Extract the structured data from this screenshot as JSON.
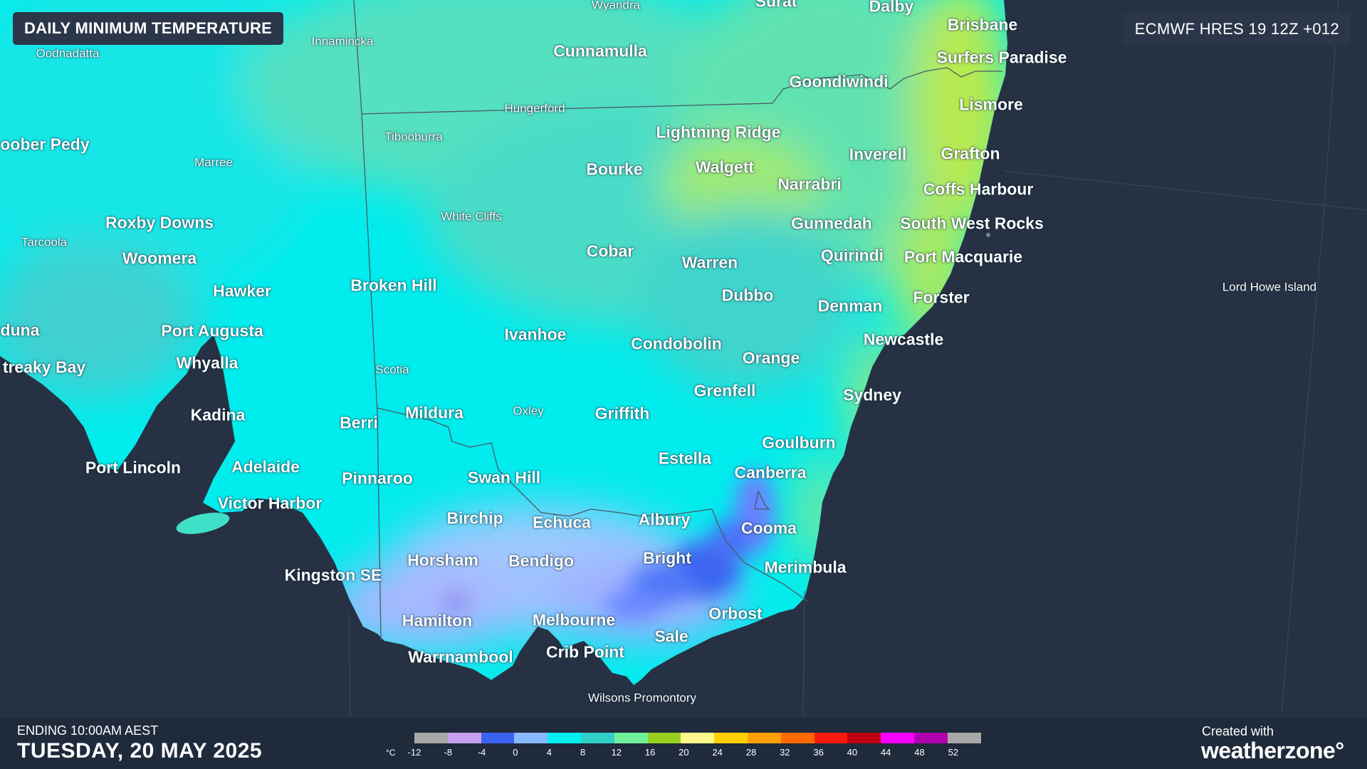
{
  "header": {
    "title": "DAILY MINIMUM TEMPERATURE",
    "model": "ECMWF HRES 19 12Z +012"
  },
  "footer": {
    "ending": "ENDING 10:00AM AEST",
    "date": "TUESDAY, 20 MAY 2025",
    "created_with": "Created with",
    "brand": "weatherzone°"
  },
  "legend": {
    "unit": "°C",
    "ticks": [
      "-12",
      "-8",
      "-4",
      "0",
      "4",
      "8",
      "12",
      "16",
      "20",
      "24",
      "28",
      "32",
      "36",
      "40",
      "44",
      "48",
      "52"
    ],
    "colors": [
      "#a8a8a8",
      "#c8a0f0",
      "#3b63f0",
      "#88b8ff",
      "#00f0f0",
      "#30d0c8",
      "#70f098",
      "#98d020",
      "#fff88a",
      "#ffd000",
      "#ffa000",
      "#ff6a00",
      "#ff1a10",
      "#c00010",
      "#ff00ff",
      "#b000b0",
      "#a8a8a8"
    ]
  },
  "colors": {
    "ocean": "#263244",
    "cyan": "#00f0f0",
    "teal": "#40d8d0",
    "green": "#70e8a0",
    "yellow_green": "#c8e830",
    "blue": "#3b63f0",
    "lavender": "#b0b8ff"
  },
  "places": [
    {
      "name": "Wyandra"
    },
    {
      "name": "Surat"
    },
    {
      "name": "Dalby"
    },
    {
      "name": "Brisbane"
    },
    {
      "name": "Innamincka"
    },
    {
      "name": "Oodnadatta"
    },
    {
      "name": "Cunnamulla"
    },
    {
      "name": "Surfers Paradise"
    },
    {
      "name": "Goondiwindi"
    },
    {
      "name": "Hungerford"
    },
    {
      "name": "Lismore"
    },
    {
      "name": "Tibooburra"
    },
    {
      "name": "Lightning Ridge"
    },
    {
      "name": "oober Pedy"
    },
    {
      "name": "Inverell"
    },
    {
      "name": "Grafton"
    },
    {
      "name": "Marree"
    },
    {
      "name": "Bourke"
    },
    {
      "name": "Walgett"
    },
    {
      "name": "Narrabri"
    },
    {
      "name": "Coffs Harbour"
    },
    {
      "name": "White Cliffs"
    },
    {
      "name": "Roxby Downs"
    },
    {
      "name": "Gunnedah"
    },
    {
      "name": "South West Rocks"
    },
    {
      "name": "Tarcoola"
    },
    {
      "name": "Cobar"
    },
    {
      "name": "Quirindi"
    },
    {
      "name": "Port Macquarie"
    },
    {
      "name": "Woomera"
    },
    {
      "name": "Warren"
    },
    {
      "name": "Broken Hill"
    },
    {
      "name": "Hawker"
    },
    {
      "name": "Lord Howe Island"
    },
    {
      "name": "Dubbo"
    },
    {
      "name": "Forster"
    },
    {
      "name": "Denman"
    },
    {
      "name": "duna"
    },
    {
      "name": "Port Augusta"
    },
    {
      "name": "Ivanhoe"
    },
    {
      "name": "Newcastle"
    },
    {
      "name": "Condobolin"
    },
    {
      "name": "Orange"
    },
    {
      "name": "Whyalla"
    },
    {
      "name": "treaky Bay"
    },
    {
      "name": "Scotia"
    },
    {
      "name": "Grenfell"
    },
    {
      "name": "Sydney"
    },
    {
      "name": "Mildura"
    },
    {
      "name": "Oxley"
    },
    {
      "name": "Griffith"
    },
    {
      "name": "Kadina"
    },
    {
      "name": "Berri"
    },
    {
      "name": "Goulburn"
    },
    {
      "name": "Estella"
    },
    {
      "name": "Port Lincoln"
    },
    {
      "name": "Adelaide"
    },
    {
      "name": "Canberra"
    },
    {
      "name": "Pinnaroo"
    },
    {
      "name": "Swan Hill"
    },
    {
      "name": "Victor Harbor"
    },
    {
      "name": "Birchip"
    },
    {
      "name": "Albury"
    },
    {
      "name": "Echuca"
    },
    {
      "name": "Cooma"
    },
    {
      "name": "Bright"
    },
    {
      "name": "Horsham"
    },
    {
      "name": "Bendigo"
    },
    {
      "name": "Merimbula"
    },
    {
      "name": "Kingston SE"
    },
    {
      "name": "Orbost"
    },
    {
      "name": "Hamilton"
    },
    {
      "name": "Melbourne"
    },
    {
      "name": "Sale"
    },
    {
      "name": "Crib Point"
    },
    {
      "name": "Warrnambool"
    },
    {
      "name": "Wilsons Promontory"
    }
  ]
}
